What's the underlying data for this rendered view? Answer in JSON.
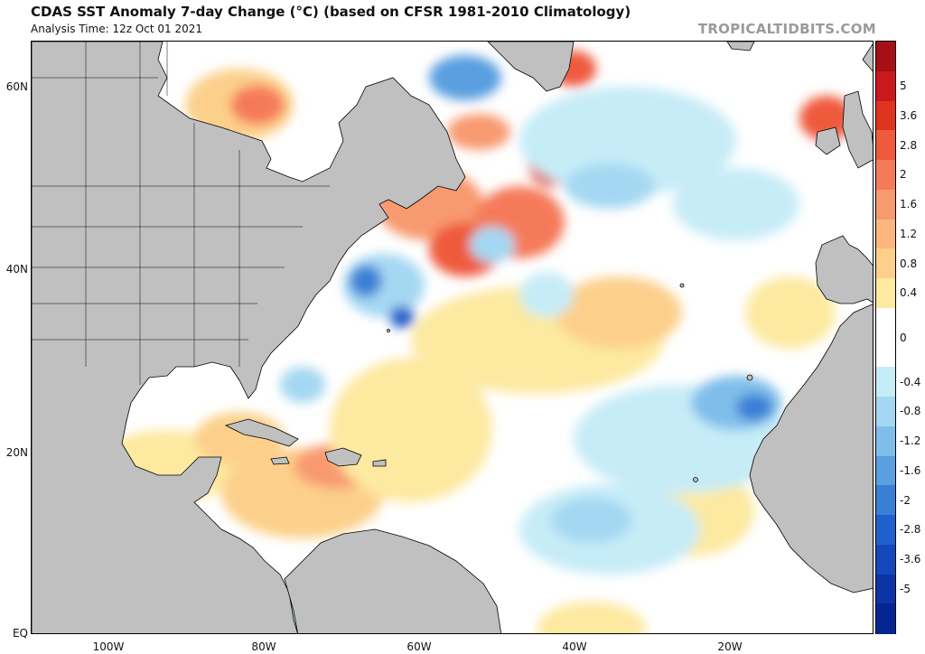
{
  "header": {
    "title": "CDAS SST Anomaly 7-day Change (°C) (based on CFSR 1981-2010 Climatology)",
    "subtitle": "Analysis Time: 12z Oct 01 2021",
    "credit": "TROPICALTIDBITS.COM"
  },
  "map": {
    "lat_labels": [
      "60N",
      "40N",
      "20N",
      "EQ"
    ],
    "lon_labels": [
      "100W",
      "80W",
      "60W",
      "40W",
      "20W"
    ],
    "land_color": "#c0c0c0",
    "border_color": "#000000"
  },
  "colorbar": {
    "ticks": [
      "5",
      "3.6",
      "2.8",
      "2",
      "1.6",
      "1.2",
      "0.8",
      "0.4",
      "0",
      "-0.4",
      "-0.8",
      "-1.2",
      "-1.6",
      "-2",
      "-2.8",
      "-3.6",
      "-5"
    ],
    "colors": [
      "#a50f15",
      "#cb181d",
      "#e0341e",
      "#ef5a3c",
      "#f57a5a",
      "#f89a6f",
      "#fbb77f",
      "#fcd08b",
      "#fde9a0",
      "#ffffff",
      "#ffffff",
      "#c6ecf7",
      "#a4d8f2",
      "#7fbeea",
      "#5a9fe0",
      "#3a7fd6",
      "#2060cc",
      "#1448bb",
      "#0c34a6",
      "#052590"
    ]
  }
}
